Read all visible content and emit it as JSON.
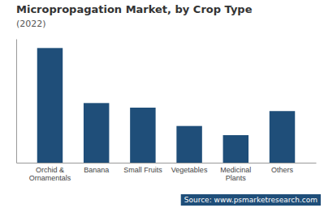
{
  "chart_data": {
    "type": "bar",
    "title": "Micropropagation Market, by Crop Type",
    "subtitle": "(2022)",
    "categories": [
      "Orchid &\nOrnamentals",
      "Banana",
      "Small Fruits",
      "Vegetables",
      "Medicinal\nPlants",
      "Others"
    ],
    "values": [
      100,
      52,
      48,
      32,
      24,
      45
    ],
    "color": "#1f4e79",
    "ylim": [
      0,
      108
    ],
    "tick_labels": "x",
    "grid": false,
    "annotations": [
      "Source: www.psmarketresearch.com"
    ]
  }
}
